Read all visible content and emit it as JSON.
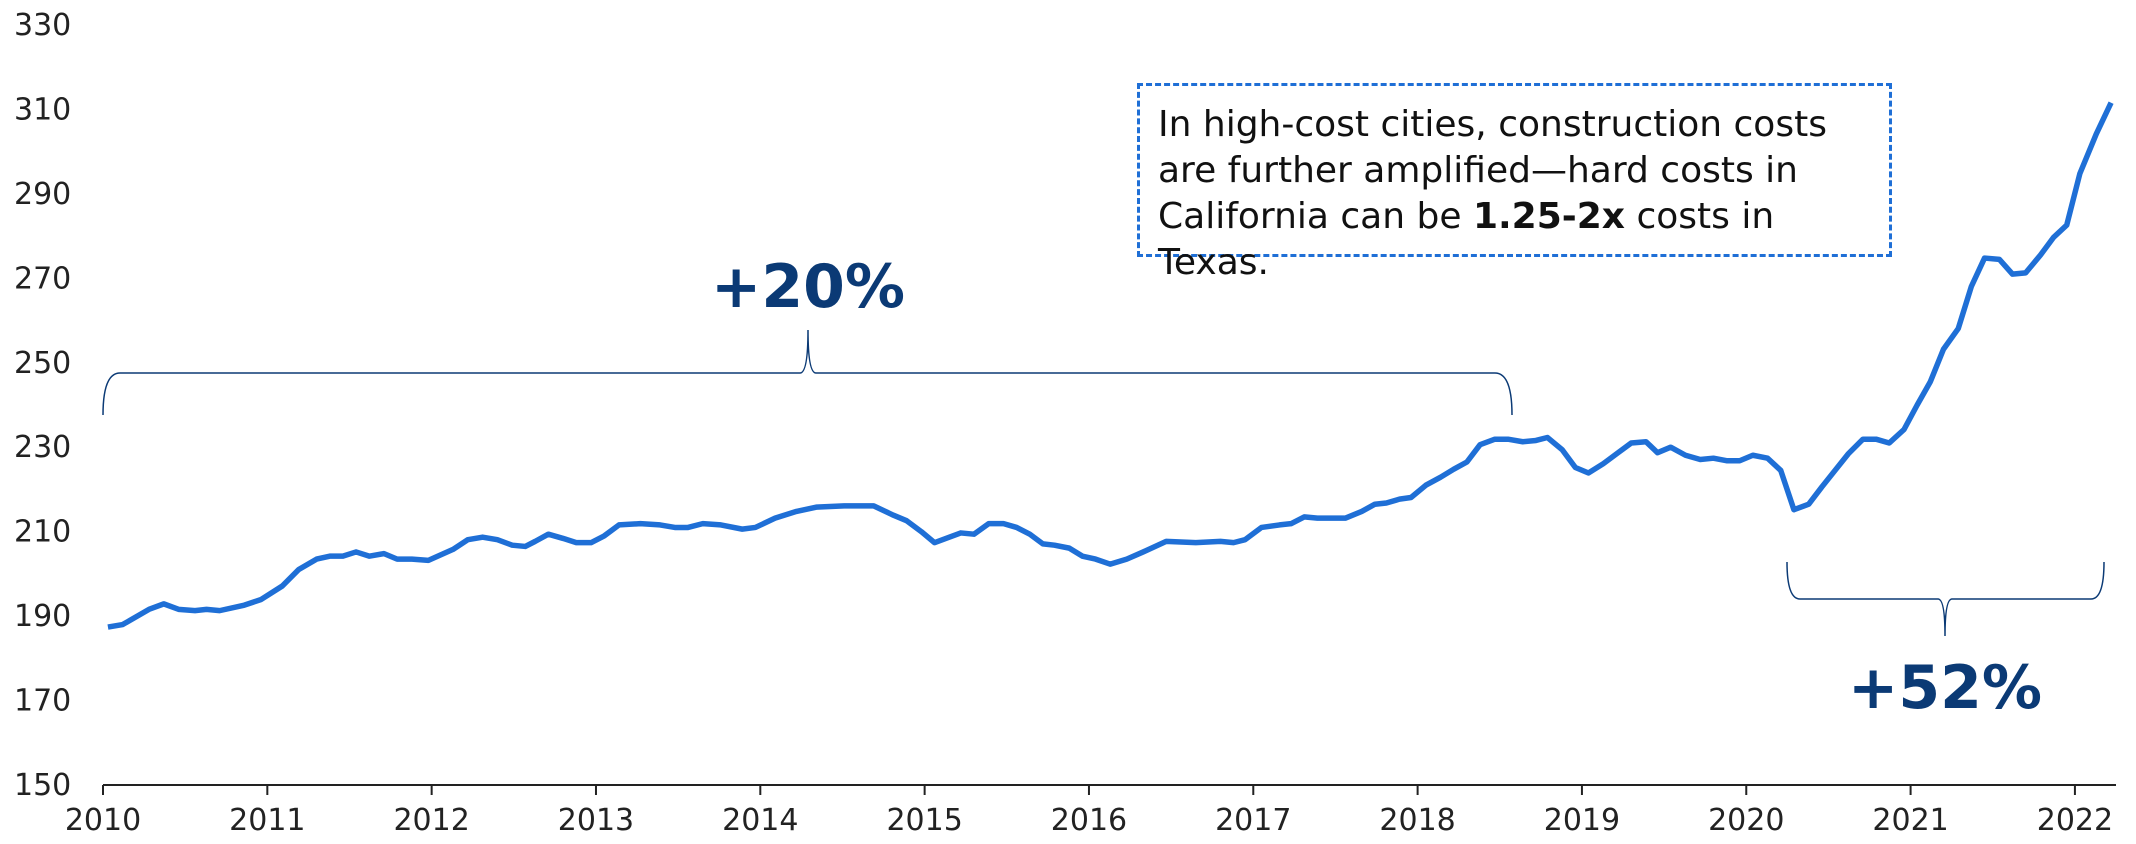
{
  "chart_data": {
    "type": "line",
    "x": [
      2010.03,
      2010.12,
      2010.28,
      2010.37,
      2010.46,
      2010.56,
      2010.63,
      2010.71,
      2010.86,
      2010.96,
      2011.09,
      2011.19,
      2011.3,
      2011.38,
      2011.46,
      2011.54,
      2011.62,
      2011.71,
      2011.79,
      2011.88,
      2011.98,
      2012.13,
      2012.22,
      2012.31,
      2012.4,
      2012.49,
      2012.57,
      2012.63,
      2012.71,
      2012.8,
      2012.88,
      2012.97,
      2013.05,
      2013.14,
      2013.27,
      2013.39,
      2013.48,
      2013.56,
      2013.65,
      2013.76,
      2013.89,
      2013.97,
      2014.09,
      2014.22,
      2014.34,
      2014.51,
      2014.69,
      2014.81,
      2014.89,
      2014.98,
      2015.06,
      2015.15,
      2015.22,
      2015.3,
      2015.39,
      2015.48,
      2015.56,
      2015.64,
      2015.72,
      2015.79,
      2015.88,
      2015.96,
      2016.04,
      2016.13,
      2016.23,
      2016.33,
      2016.47,
      2016.65,
      2016.8,
      2016.88,
      2016.95,
      2017.05,
      2017.16,
      2017.23,
      2017.31,
      2017.39,
      2017.56,
      2017.66,
      2017.74,
      2017.81,
      2017.89,
      2017.96,
      2018.05,
      2018.14,
      2018.22,
      2018.3,
      2018.38,
      2018.47,
      2018.55,
      2018.64,
      2018.72,
      2018.79,
      2018.88,
      2018.96,
      2019.04,
      2019.13,
      2019.22,
      2019.3,
      2019.39,
      2019.46,
      2019.54,
      2019.63,
      2019.72,
      2019.8,
      2019.88,
      2019.96,
      2020.04,
      2020.13,
      2020.21,
      2020.29,
      2020.38,
      2020.46,
      2020.54,
      2020.62,
      2020.71,
      2020.79,
      2020.87,
      2020.96,
      2021.04,
      2021.12,
      2021.2,
      2021.29,
      2021.37,
      2021.45,
      2021.54,
      2021.62,
      2021.7,
      2021.79,
      2021.87,
      2021.95,
      2022.03,
      2022.13,
      2022.22
    ],
    "series": [
      {
        "color": "#1f6fd6",
        "values": [
          187.4,
          188,
          191.6,
          192.9,
          191.6,
          191.3,
          191.6,
          191.3,
          192.6,
          193.9,
          197.1,
          201,
          203.5,
          204.2,
          204.2,
          205.2,
          204.2,
          204.8,
          203.5,
          203.5,
          203.2,
          205.8,
          208.1,
          208.7,
          208.1,
          206.8,
          206.5,
          207.7,
          209.4,
          208.4,
          207.4,
          207.4,
          209,
          211.6,
          211.9,
          211.6,
          211,
          211,
          211.9,
          211.6,
          210.6,
          211,
          213.2,
          214.8,
          215.8,
          216.1,
          216.1,
          213.9,
          212.6,
          210,
          207.4,
          208.7,
          209.7,
          209.4,
          211.9,
          211.9,
          211,
          209.4,
          207.1,
          206.8,
          206.1,
          204.2,
          203.5,
          202.3,
          203.5,
          205.2,
          207.7,
          207.4,
          207.7,
          207.4,
          208.1,
          211,
          211.6,
          211.9,
          213.5,
          213.2,
          213.2,
          214.8,
          216.5,
          216.8,
          217.7,
          218.1,
          221,
          222.9,
          224.8,
          226.5,
          230.6,
          231.9,
          231.9,
          231.3,
          231.6,
          232.3,
          229.4,
          225.2,
          223.9,
          226.1,
          228.7,
          231,
          231.3,
          228.7,
          230,
          228.1,
          227.1,
          227.4,
          226.8,
          226.8,
          228.1,
          227.4,
          224.5,
          215.2,
          216.5,
          220.6,
          224.5,
          228.4,
          231.9,
          231.9,
          231,
          234.2,
          240,
          245.5,
          253.2,
          258.1,
          268.1,
          274.8,
          274.5,
          271,
          271.3,
          275.5,
          279.7,
          282.6,
          294.8,
          304.2,
          311.6
        ]
      }
    ],
    "xlim": [
      2010,
      2022.25
    ],
    "xticks": [
      2010,
      2011,
      2012,
      2013,
      2014,
      2015,
      2016,
      2017,
      2018,
      2019,
      2020,
      2021,
      2022
    ],
    "ylim": [
      150,
      330
    ],
    "yticks": [
      150,
      170,
      190,
      210,
      230,
      250,
      270,
      290,
      310,
      330
    ],
    "annotations": [
      "+20%",
      "+52%"
    ],
    "callout": [
      "In high-cost cities, construction costs are further amplified—hard costs in California can be ",
      "1.25-2x",
      " costs in Texas."
    ]
  }
}
